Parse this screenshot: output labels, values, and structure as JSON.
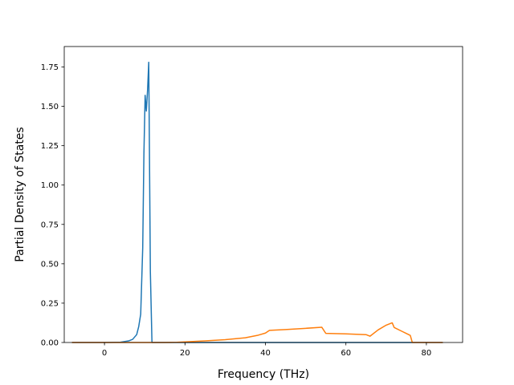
{
  "chart_data": {
    "type": "line",
    "title": "",
    "xlabel": "Frequency (THz)",
    "ylabel": "Partial Density of States",
    "xlim": [
      -10,
      89
    ],
    "ylim": [
      0,
      1.88
    ],
    "xticks": [
      0,
      20,
      40,
      60,
      80
    ],
    "yticks": [
      0.0,
      0.25,
      0.5,
      0.75,
      1.0,
      1.25,
      1.5,
      1.75
    ],
    "xtick_labels": [
      "0",
      "20",
      "40",
      "60",
      "80"
    ],
    "ytick_labels": [
      "0.00",
      "0.25",
      "0.50",
      "0.75",
      "1.00",
      "1.25",
      "1.50",
      "1.75"
    ],
    "grid": false,
    "legend": "none",
    "series": [
      {
        "color": "#1f77b4",
        "x": [
          -8,
          0,
          4,
          6,
          7,
          8,
          8.5,
          9,
          9.5,
          9.8,
          10.1,
          10.4,
          10.7,
          11,
          11.4,
          11.8,
          12.2,
          20,
          40,
          60,
          84
        ],
        "y": [
          0,
          0,
          0.002,
          0.01,
          0.02,
          0.05,
          0.1,
          0.18,
          0.6,
          1.2,
          1.57,
          1.47,
          1.6,
          1.78,
          0.45,
          0.0,
          0.0,
          0,
          0,
          0,
          0
        ]
      },
      {
        "color": "#ff7f0e",
        "x": [
          -8,
          10,
          15,
          18,
          20,
          25,
          30,
          35,
          38,
          40,
          41,
          45,
          50,
          54,
          55,
          60,
          65,
          66,
          68,
          70,
          71.5,
          72,
          74,
          76,
          76.5,
          84
        ],
        "y": [
          0,
          0,
          0,
          0.001,
          0.004,
          0.01,
          0.018,
          0.03,
          0.045,
          0.06,
          0.077,
          0.082,
          0.09,
          0.097,
          0.058,
          0.055,
          0.05,
          0.04,
          0.08,
          0.11,
          0.125,
          0.095,
          0.07,
          0.045,
          0.0,
          0
        ]
      }
    ]
  }
}
